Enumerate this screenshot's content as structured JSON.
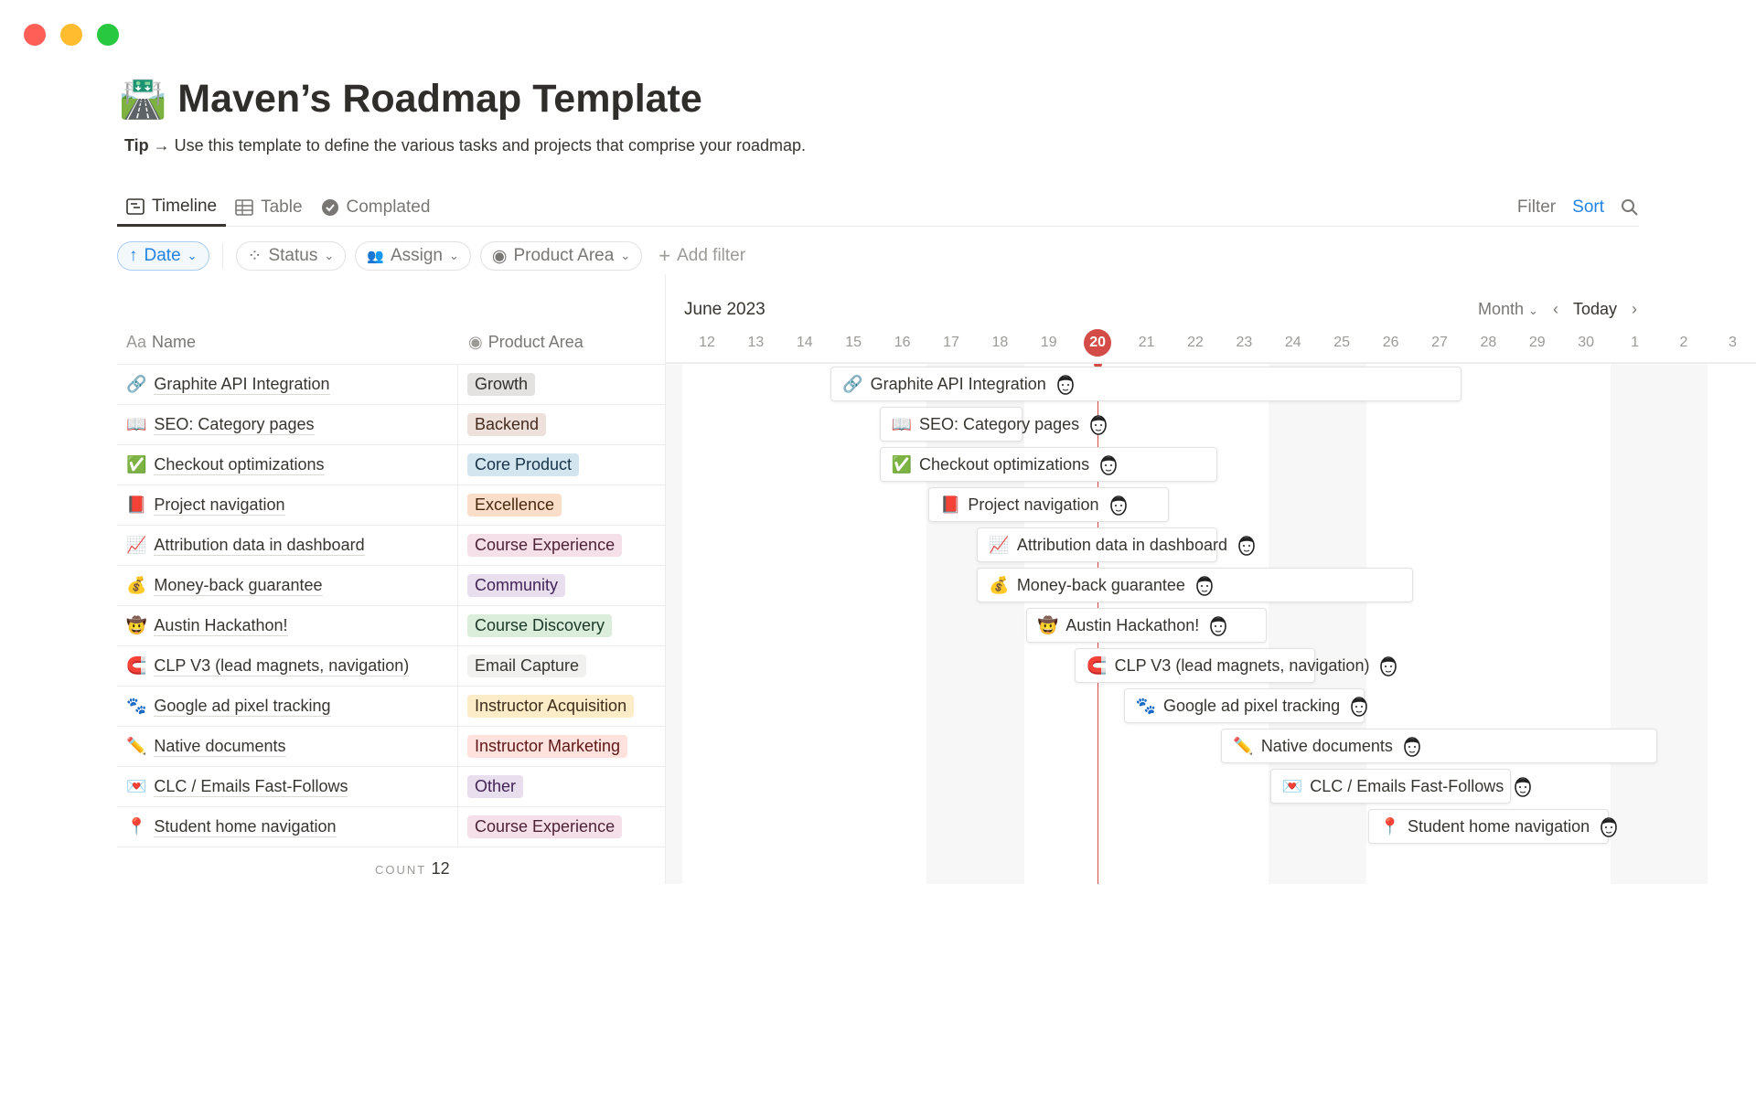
{
  "window": {
    "controls": [
      {
        "name": "close",
        "color": "#ff5f57"
      },
      {
        "name": "minimize",
        "color": "#febc2e"
      },
      {
        "name": "maximize",
        "color": "#28c840"
      }
    ]
  },
  "page": {
    "icon": "🛣️",
    "title": "Maven’s Roadmap Template",
    "tip_label": "Tip →",
    "tip_text": " Use this template to define the various tasks and projects that comprise your roadmap."
  },
  "tabs": [
    {
      "label": "Timeline",
      "icon": "timeline-icon",
      "active": true
    },
    {
      "label": "Table",
      "icon": "table-icon"
    },
    {
      "label": "Complated",
      "icon": "check-circle-icon"
    }
  ],
  "toolbar": {
    "filter": "Filter",
    "sort": "Sort",
    "search_icon": "search-icon"
  },
  "filters": {
    "sort": "Date",
    "status": "Status",
    "assign": "Assign",
    "product_area": "Product Area",
    "add": "Add filter"
  },
  "table": {
    "name_header": "Name",
    "name_header_prefix": "Aa",
    "area_header": "Product Area",
    "count_label": "COUNT",
    "count": "12"
  },
  "timeline": {
    "month": "June 2023",
    "view": "Month",
    "today": "Today",
    "today_date": "2023-06-20",
    "days": [
      "12",
      "13",
      "14",
      "15",
      "16",
      "17",
      "18",
      "19",
      "20",
      "21",
      "22",
      "23",
      "24",
      "25",
      "26",
      "27",
      "28",
      "29",
      "30",
      "1",
      "2",
      "3"
    ]
  },
  "tag_colors": {
    "Growth": [
      "#e3e2e0",
      "#32302c"
    ],
    "Backend": [
      "#eee0da",
      "#442a1e"
    ],
    "Core Product": [
      "#d3e5ef",
      "#183347"
    ],
    "Excellence": [
      "#fadec9",
      "#49290e"
    ],
    "Course Experience": [
      "#f5e0e9",
      "#4c2337"
    ],
    "Community": [
      "#e8deee",
      "#412454"
    ],
    "Course Discovery": [
      "#dbeddb",
      "#1c3829"
    ],
    "Email Capture": [
      "#f1f1ef",
      "#37352f"
    ],
    "Instructor Acquisition": [
      "#fdecc8",
      "#402c1b"
    ],
    "Instructor Marketing": [
      "#ffe2dd",
      "#5d1715"
    ],
    "Other": [
      "#e8deee",
      "#412454"
    ]
  },
  "items": [
    {
      "icon": "🔗",
      "name": "Graphite API Integration",
      "area": "Growth",
      "start": "2023-06-15",
      "end": "2023-06-27"
    },
    {
      "icon": "📖",
      "name": "SEO: Category pages",
      "area": "Backend",
      "start": "2023-06-16",
      "end": "2023-06-18"
    },
    {
      "icon": "✅",
      "name": "Checkout optimizations",
      "area": "Core Product",
      "start": "2023-06-16",
      "end": "2023-06-22"
    },
    {
      "icon": "📕",
      "name": "Project navigation",
      "area": "Excellence",
      "start": "2023-06-17",
      "end": "2023-06-21"
    },
    {
      "icon": "📈",
      "name": "Attribution data in dashboard",
      "area": "Course Experience",
      "start": "2023-06-18",
      "end": "2023-06-22"
    },
    {
      "icon": "💰",
      "name": "Money-back guarantee",
      "area": "Community",
      "start": "2023-06-18",
      "end": "2023-06-26"
    },
    {
      "icon": "🤠",
      "name": "Austin Hackathon!",
      "area": "Course Discovery",
      "start": "2023-06-19",
      "end": "2023-06-23"
    },
    {
      "icon": "🧲",
      "name": "CLP V3 (lead magnets, navigation)",
      "area": "Email Capture",
      "start": "2023-06-20",
      "end": "2023-06-24"
    },
    {
      "icon": "🐾",
      "name": "Google ad pixel tracking",
      "area": "Instructor Acquisition",
      "start": "2023-06-21",
      "end": "2023-06-25"
    },
    {
      "icon": "✏️",
      "name": "Native documents",
      "area": "Instructor Marketing",
      "start": "2023-06-23",
      "end": "2023-07-01"
    },
    {
      "icon": "💌",
      "name": "CLC / Emails Fast-Follows",
      "area": "Other",
      "start": "2023-06-24",
      "end": "2023-06-28"
    },
    {
      "icon": "📍",
      "name": "Student home navigation",
      "area": "Course Experience",
      "start": "2023-06-26",
      "end": "2023-06-30"
    }
  ]
}
